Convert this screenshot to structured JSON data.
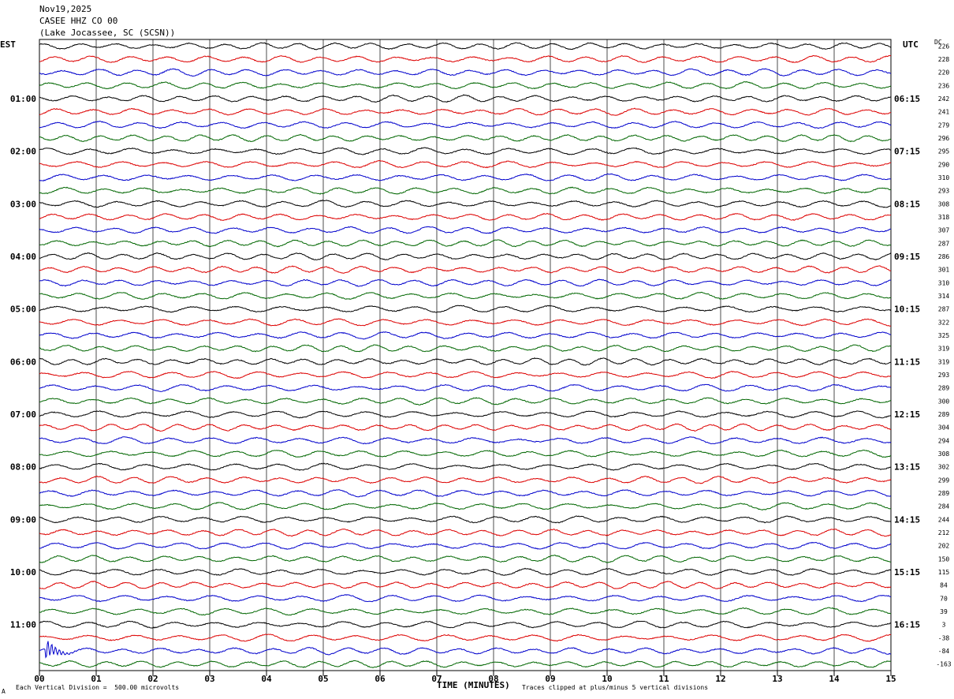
{
  "header": {
    "date": "Nov19,2025",
    "station": "CASEE HHZ CO 00",
    "location": "(Lake Jocassee, SC (SCSN))"
  },
  "axes": {
    "left_tz": "EST",
    "right_tz": "UTC",
    "dc_label": "DC",
    "xlabel": "TIME (MINUTES)"
  },
  "footer": {
    "scale_note": "Each Vertical Division =  500.00 microvolts",
    "clip_note": "Traces clipped at plus/minus 5 vertical divisions",
    "corner_mark": "A"
  },
  "chart_data": {
    "type": "line",
    "title": "",
    "x_ticks": [
      "00",
      "01",
      "02",
      "03",
      "04",
      "05",
      "06",
      "07",
      "08",
      "09",
      "10",
      "11",
      "12",
      "13",
      "14",
      "15"
    ],
    "xlim": [
      0,
      15
    ],
    "rows_per_hour": 4,
    "trace_colors": [
      "#000000",
      "#dd0000",
      "#0000cc",
      "#006600"
    ],
    "left_hour_labels": [
      "01:00",
      "02:00",
      "03:00",
      "04:00",
      "05:00",
      "06:00",
      "07:00",
      "08:00",
      "09:00",
      "10:00",
      "11:00"
    ],
    "right_hour_labels": [
      "06:15",
      "07:15",
      "08:15",
      "09:15",
      "10:15",
      "11:15",
      "12:15",
      "13:15",
      "14:15",
      "15:15",
      "16:15"
    ],
    "dc_values": [
      "226",
      "228",
      "220",
      "236",
      "242",
      "241",
      "279",
      "296",
      "295",
      "290",
      "310",
      "293",
      "308",
      "318",
      "307",
      "287",
      "286",
      "301",
      "310",
      "314",
      "287",
      "322",
      "325",
      "319",
      "319",
      "293",
      "289",
      "300",
      "289",
      "304",
      "294",
      "308",
      "302",
      "299",
      "289",
      "284",
      "244",
      "212",
      "202",
      "150",
      "115",
      "84",
      "70",
      "39",
      "3",
      "-38",
      "-84",
      "-163"
    ],
    "event": {
      "row": 46,
      "minute": 0.1,
      "note": ""
    }
  }
}
